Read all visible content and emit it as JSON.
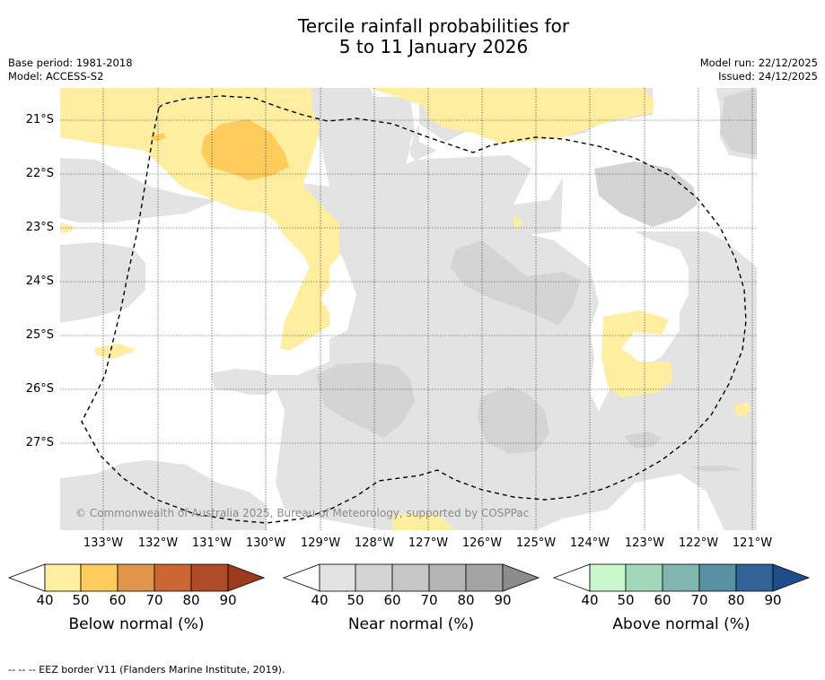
{
  "title": {
    "line1": "Tercile rainfall probabilities for",
    "line2": "5 to 11 January 2026"
  },
  "meta": {
    "base_period": "Base period: 1981-2018",
    "model": "Model: ACCESS-S2",
    "model_run": "Model run: 22/12/2025",
    "issued": "Issued: 24/12/2025"
  },
  "map": {
    "lat_labels": [
      "21°S",
      "22°S",
      "23°S",
      "24°S",
      "25°S",
      "26°S",
      "27°S"
    ],
    "lon_labels": [
      "133°W",
      "132°W",
      "131°W",
      "130°W",
      "129°W",
      "128°W",
      "127°W",
      "126°W",
      "125°W",
      "124°W",
      "123°W",
      "122°W",
      "121°W"
    ],
    "copyright": "© Commonwealth of Australia 2025, Bureau of Meteorology, supported by COSPPac",
    "colors": {
      "below_40": "#ffeda0",
      "below_50": "#fecc5c",
      "near_40": "#e3e3e3",
      "near_50": "#d4d4d4",
      "above_40": "#c7f9cc"
    }
  },
  "colorbars": [
    {
      "title": "Below normal (%)",
      "ticks": [
        "40",
        "50",
        "60",
        "70",
        "80",
        "90"
      ],
      "colors": [
        "#ffeda0",
        "#fecc5c",
        "#e0954a",
        "#cb6632",
        "#b04b28",
        "#9c3a1e"
      ]
    },
    {
      "title": "Near normal (%)",
      "ticks": [
        "40",
        "50",
        "60",
        "70",
        "80",
        "90"
      ],
      "colors": [
        "#e3e3e3",
        "#d4d4d4",
        "#c6c6c6",
        "#b5b5b5",
        "#a3a3a3",
        "#8c8c8c"
      ]
    },
    {
      "title": "Above normal (%)",
      "ticks": [
        "40",
        "50",
        "60",
        "70",
        "80",
        "90"
      ],
      "colors": [
        "#c8f8cc",
        "#a2d8ba",
        "#80b5b0",
        "#5790a0",
        "#316298",
        "#1d4e8a"
      ]
    }
  ],
  "footer": "--  --  -- EEZ border V11 (Flanders Marine Institute, 2019)."
}
